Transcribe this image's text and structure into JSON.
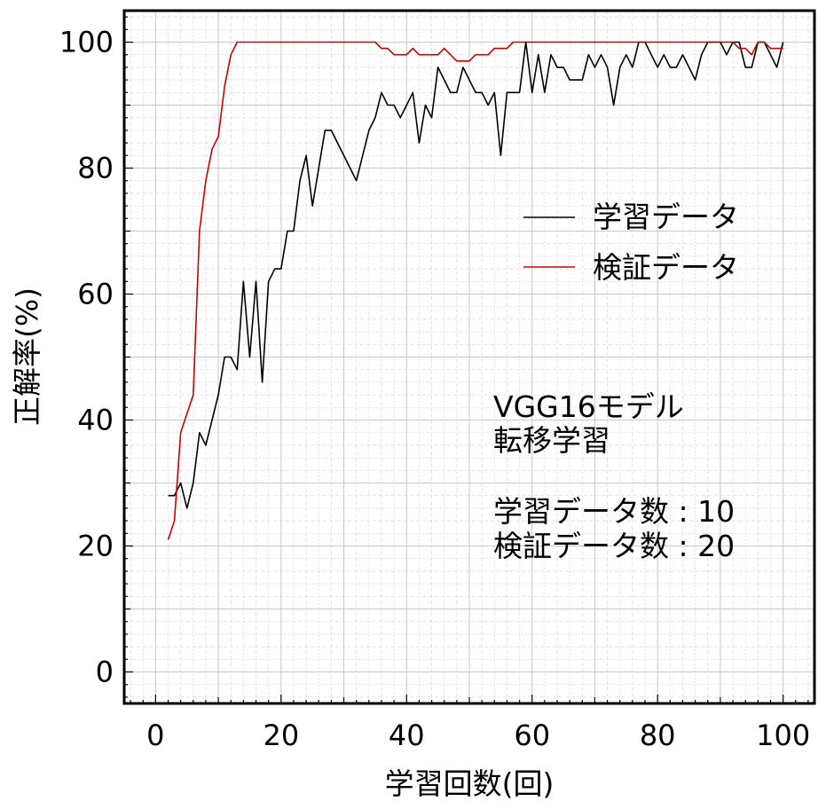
{
  "chart_data": {
    "type": "line",
    "title": "",
    "xlabel": "学習回数(回)",
    "ylabel": "正解率(%)",
    "xlim": [
      -5,
      105
    ],
    "ylim": [
      -5,
      105
    ],
    "xticks": [
      0,
      20,
      40,
      60,
      80,
      100
    ],
    "yticks": [
      0,
      20,
      40,
      60,
      80,
      100
    ],
    "grid": true,
    "legend_position": "right",
    "series": [
      {
        "name": "学習データ",
        "color": "#000000",
        "x": [
          2,
          3,
          4,
          5,
          6,
          7,
          8,
          9,
          10,
          11,
          12,
          13,
          14,
          15,
          16,
          17,
          18,
          19,
          20,
          21,
          22,
          23,
          24,
          25,
          26,
          27,
          28,
          29,
          30,
          31,
          32,
          33,
          34,
          35,
          36,
          37,
          38,
          39,
          40,
          41,
          42,
          43,
          44,
          45,
          46,
          47,
          48,
          49,
          50,
          51,
          52,
          53,
          54,
          55,
          56,
          57,
          58,
          59,
          60,
          61,
          62,
          63,
          64,
          65,
          66,
          67,
          68,
          69,
          70,
          71,
          72,
          73,
          74,
          75,
          76,
          77,
          78,
          79,
          80,
          81,
          82,
          83,
          84,
          85,
          86,
          87,
          88,
          89,
          90,
          91,
          92,
          93,
          94,
          95,
          96,
          97,
          98,
          99,
          100
        ],
        "y": [
          28,
          28,
          30,
          26,
          30,
          38,
          36,
          40,
          44,
          50,
          50,
          48,
          62,
          50,
          62,
          46,
          62,
          64,
          64,
          70,
          70,
          78,
          82,
          74,
          80,
          86,
          86,
          84,
          82,
          80,
          78,
          82,
          86,
          88,
          92,
          90,
          90,
          88,
          90,
          92,
          84,
          90,
          88,
          96,
          94,
          92,
          92,
          96,
          94,
          92,
          92,
          90,
          92,
          82,
          92,
          92,
          92,
          100,
          92,
          98,
          92,
          98,
          96,
          96,
          94,
          94,
          94,
          98,
          96,
          98,
          96,
          90,
          96,
          98,
          96,
          100,
          100,
          98,
          96,
          98,
          96,
          96,
          98,
          96,
          94,
          98,
          100,
          100,
          100,
          98,
          100,
          100,
          96,
          96,
          100,
          100,
          98,
          96,
          100
        ]
      },
      {
        "name": "検証データ",
        "color": "#cc0000",
        "x": [
          2,
          3,
          4,
          5,
          6,
          7,
          8,
          9,
          10,
          11,
          12,
          13,
          14,
          15,
          16,
          17,
          18,
          19,
          20,
          21,
          22,
          23,
          24,
          25,
          26,
          27,
          28,
          29,
          30,
          31,
          32,
          33,
          34,
          35,
          36,
          37,
          38,
          39,
          40,
          41,
          42,
          43,
          44,
          45,
          46,
          47,
          48,
          49,
          50,
          51,
          52,
          53,
          54,
          55,
          56,
          57,
          58,
          59,
          60,
          61,
          62,
          63,
          64,
          65,
          66,
          67,
          68,
          69,
          70,
          71,
          72,
          73,
          74,
          75,
          76,
          77,
          78,
          79,
          80,
          81,
          82,
          83,
          84,
          85,
          86,
          87,
          88,
          89,
          90,
          91,
          92,
          93,
          94,
          95,
          96,
          97,
          98,
          99,
          100
        ],
        "y": [
          21,
          24,
          38,
          41,
          44,
          70,
          78,
          83,
          85,
          93,
          98,
          100,
          100,
          100,
          100,
          100,
          100,
          100,
          100,
          100,
          100,
          100,
          100,
          100,
          100,
          100,
          100,
          100,
          100,
          100,
          100,
          100,
          100,
          100,
          99,
          99,
          98,
          98,
          98,
          99,
          98,
          98,
          98,
          98,
          99,
          98,
          97,
          97,
          97,
          98,
          98,
          98,
          99,
          99,
          99,
          100,
          100,
          100,
          100,
          100,
          100,
          100,
          100,
          100,
          100,
          100,
          100,
          100,
          100,
          100,
          100,
          100,
          100,
          100,
          100,
          100,
          100,
          100,
          100,
          100,
          100,
          100,
          100,
          100,
          100,
          100,
          100,
          100,
          100,
          100,
          100,
          99,
          99,
          98,
          100,
          100,
          99,
          99,
          99
        ]
      }
    ],
    "annotations": {
      "model": "VGG16モデル",
      "method": "転移学習",
      "train_count": "学習データ数 : 10",
      "val_count": "検証データ数 : 20"
    }
  }
}
